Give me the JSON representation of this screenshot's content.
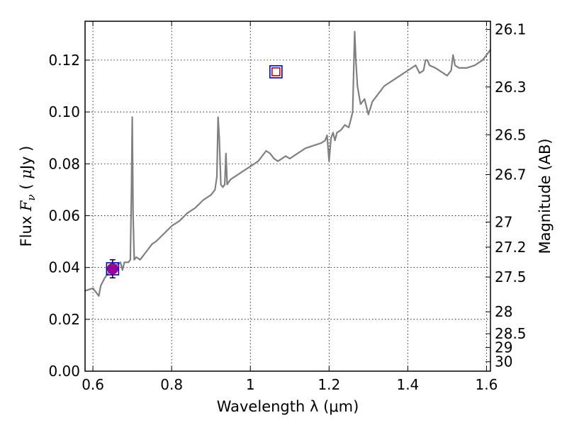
{
  "chart_data": {
    "type": "line",
    "xlabel": "Wavelength  λ (μm)",
    "ylabel_parts": [
      "Flux  ",
      "F",
      "ν",
      "  ( ",
      "μ",
      "Jy )"
    ],
    "y2label": "Magnitude (AB)",
    "xlim": [
      0.58,
      1.61
    ],
    "ylim": [
      0.0,
      0.135
    ],
    "grid": true,
    "x_ticks": [
      0.6,
      0.8,
      1.0,
      1.2,
      1.4,
      1.6
    ],
    "x_tick_labels": [
      "0.6",
      "0.8",
      "1",
      "1.2",
      "1.4",
      "1.6"
    ],
    "y_ticks": [
      0.0,
      0.02,
      0.04,
      0.06,
      0.08,
      0.1,
      0.12
    ],
    "y_tick_labels": [
      "0.00",
      "0.02",
      "0.04",
      "0.06",
      "0.08",
      "0.10",
      "0.12"
    ],
    "y2_ticks": [
      26.1,
      26.3,
      26.5,
      26.7,
      27,
      27.2,
      27.5,
      28,
      28.5,
      29,
      30
    ],
    "y2_tick_labels": [
      "26.1",
      "26.3",
      "26.5",
      "26.7",
      "27",
      "27.2",
      "27.5",
      "28",
      "28.5",
      "29",
      "30"
    ],
    "series": [
      {
        "kind": "spectrum",
        "color": "#808080",
        "x": [
          0.58,
          0.6,
          0.61,
          0.615,
          0.62,
          0.63,
          0.64,
          0.65,
          0.66,
          0.67,
          0.675,
          0.68,
          0.69,
          0.695,
          0.698,
          0.7,
          0.702,
          0.705,
          0.71,
          0.72,
          0.73,
          0.74,
          0.75,
          0.76,
          0.78,
          0.8,
          0.82,
          0.84,
          0.86,
          0.88,
          0.9,
          0.91,
          0.915,
          0.918,
          0.921,
          0.925,
          0.93,
          0.935,
          0.938,
          0.941,
          0.945,
          0.95,
          0.96,
          0.97,
          0.98,
          0.99,
          1.0,
          1.01,
          1.02,
          1.03,
          1.04,
          1.05,
          1.06,
          1.07,
          1.08,
          1.09,
          1.1,
          1.12,
          1.14,
          1.16,
          1.18,
          1.19,
          1.195,
          1.2,
          1.205,
          1.21,
          1.215,
          1.22,
          1.23,
          1.24,
          1.25,
          1.255,
          1.26,
          1.265,
          1.268,
          1.272,
          1.28,
          1.29,
          1.3,
          1.31,
          1.32,
          1.34,
          1.36,
          1.38,
          1.4,
          1.42,
          1.43,
          1.44,
          1.445,
          1.45,
          1.455,
          1.47,
          1.49,
          1.5,
          1.51,
          1.515,
          1.52,
          1.53,
          1.55,
          1.57,
          1.59,
          1.61
        ],
        "y": [
          0.031,
          0.032,
          0.03,
          0.029,
          0.033,
          0.036,
          0.038,
          0.04,
          0.041,
          0.042,
          0.039,
          0.042,
          0.042,
          0.043,
          0.07,
          0.098,
          0.06,
          0.043,
          0.044,
          0.043,
          0.045,
          0.047,
          0.049,
          0.05,
          0.053,
          0.056,
          0.058,
          0.061,
          0.063,
          0.066,
          0.068,
          0.07,
          0.075,
          0.098,
          0.09,
          0.072,
          0.071,
          0.072,
          0.084,
          0.072,
          0.073,
          0.074,
          0.075,
          0.076,
          0.077,
          0.078,
          0.079,
          0.08,
          0.081,
          0.083,
          0.085,
          0.084,
          0.082,
          0.081,
          0.082,
          0.083,
          0.082,
          0.084,
          0.086,
          0.087,
          0.088,
          0.089,
          0.091,
          0.081,
          0.09,
          0.092,
          0.089,
          0.092,
          0.093,
          0.095,
          0.094,
          0.097,
          0.1,
          0.131,
          0.12,
          0.11,
          0.103,
          0.105,
          0.099,
          0.104,
          0.106,
          0.11,
          0.112,
          0.114,
          0.116,
          0.118,
          0.115,
          0.116,
          0.12,
          0.12,
          0.118,
          0.117,
          0.115,
          0.114,
          0.116,
          0.122,
          0.118,
          0.117,
          0.117,
          0.118,
          0.12,
          0.124
        ]
      },
      {
        "kind": "point",
        "marker": "circle",
        "color": "#990099",
        "x": [
          0.65
        ],
        "y": [
          0.0395
        ],
        "yerr": [
          0.0035
        ]
      },
      {
        "kind": "point",
        "marker": "square-open",
        "color": "#0000cc",
        "x": [
          0.65,
          1.065
        ],
        "y": [
          0.0395,
          0.1155
        ]
      },
      {
        "kind": "point",
        "marker": "square-open",
        "color": "#cc0000",
        "x": [
          1.065
        ],
        "y": [
          0.1155
        ]
      }
    ]
  }
}
